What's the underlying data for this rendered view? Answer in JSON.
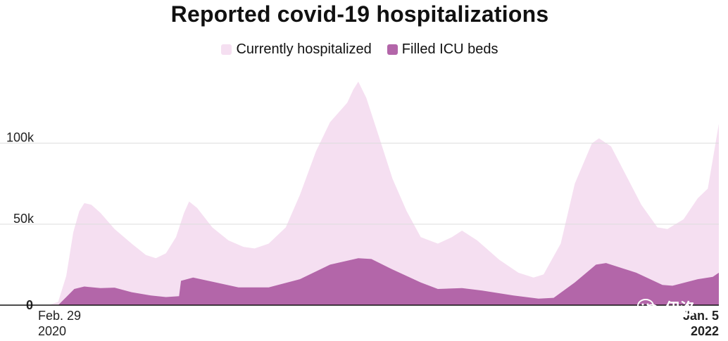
{
  "chart_data": {
    "type": "area",
    "title": "Reported covid-19 hospitalizations",
    "legend_position": "top-center",
    "grid": true,
    "ylim": [
      0,
      145000
    ],
    "y_ticks": [
      {
        "value": 0,
        "label": "0"
      },
      {
        "value": 50000,
        "label": "50k"
      },
      {
        "value": 100000,
        "label": "100k"
      }
    ],
    "x_range": [
      "2020-02-29",
      "2022-01-05"
    ],
    "x_ticks": [
      {
        "date": "2020-02-29",
        "line1": "Feb. 29",
        "line2": "2020",
        "bold": false
      },
      {
        "date": "2022-01-05",
        "line1": "Jan. 5",
        "line2": "2022",
        "bold": true
      }
    ],
    "series": [
      {
        "name": "Currently hospitalized",
        "color": "#f5dff1",
        "points": [
          [
            "2020-02-29",
            0
          ],
          [
            "2020-03-10",
            0
          ],
          [
            "2020-03-20",
            2000
          ],
          [
            "2020-03-28",
            18000
          ],
          [
            "2020-04-04",
            45000
          ],
          [
            "2020-04-10",
            58000
          ],
          [
            "2020-04-15",
            63000
          ],
          [
            "2020-04-22",
            62000
          ],
          [
            "2020-05-01",
            57000
          ],
          [
            "2020-05-15",
            47000
          ],
          [
            "2020-06-01",
            38000
          ],
          [
            "2020-06-15",
            31000
          ],
          [
            "2020-06-25",
            29000
          ],
          [
            "2020-07-05",
            32000
          ],
          [
            "2020-07-15",
            42000
          ],
          [
            "2020-07-23",
            57000
          ],
          [
            "2020-07-28",
            64000
          ],
          [
            "2020-08-05",
            60000
          ],
          [
            "2020-08-20",
            48000
          ],
          [
            "2020-09-05",
            40000
          ],
          [
            "2020-09-20",
            36000
          ],
          [
            "2020-10-01",
            35000
          ],
          [
            "2020-10-15",
            38000
          ],
          [
            "2020-11-01",
            48000
          ],
          [
            "2020-11-15",
            68000
          ],
          [
            "2020-12-01",
            95000
          ],
          [
            "2020-12-15",
            113000
          ],
          [
            "2021-01-01",
            125000
          ],
          [
            "2021-01-07",
            133000
          ],
          [
            "2021-01-12",
            138000
          ],
          [
            "2021-01-20",
            128000
          ],
          [
            "2021-02-01",
            105000
          ],
          [
            "2021-02-15",
            78000
          ],
          [
            "2021-03-01",
            58000
          ],
          [
            "2021-03-15",
            42000
          ],
          [
            "2021-04-01",
            38000
          ],
          [
            "2021-04-15",
            42000
          ],
          [
            "2021-04-25",
            46000
          ],
          [
            "2021-05-10",
            40000
          ],
          [
            "2021-06-01",
            28000
          ],
          [
            "2021-06-20",
            20000
          ],
          [
            "2021-07-05",
            17000
          ],
          [
            "2021-07-15",
            19000
          ],
          [
            "2021-08-01",
            38000
          ],
          [
            "2021-08-15",
            75000
          ],
          [
            "2021-09-01",
            100000
          ],
          [
            "2021-09-08",
            103000
          ],
          [
            "2021-09-20",
            98000
          ],
          [
            "2021-10-05",
            80000
          ],
          [
            "2021-10-20",
            62000
          ],
          [
            "2021-11-05",
            48000
          ],
          [
            "2021-11-15",
            47000
          ],
          [
            "2021-12-01",
            53000
          ],
          [
            "2021-12-15",
            66000
          ],
          [
            "2021-12-25",
            72000
          ],
          [
            "2021-12-30",
            90000
          ],
          [
            "2022-01-05",
            112000
          ]
        ]
      },
      {
        "name": "Filled ICU beds",
        "color": "#b366a9",
        "points": [
          [
            "2020-02-29",
            0
          ],
          [
            "2020-03-20",
            0
          ],
          [
            "2020-03-28",
            5000
          ],
          [
            "2020-04-05",
            10000
          ],
          [
            "2020-04-15",
            11500
          ],
          [
            "2020-05-01",
            10500
          ],
          [
            "2020-05-15",
            10800
          ],
          [
            "2020-06-01",
            8000
          ],
          [
            "2020-06-20",
            6000
          ],
          [
            "2020-07-05",
            5000
          ],
          [
            "2020-07-18",
            5500
          ],
          [
            "2020-07-20",
            15000
          ],
          [
            "2020-08-01",
            17000
          ],
          [
            "2020-08-20",
            14500
          ],
          [
            "2020-09-15",
            11000
          ],
          [
            "2020-10-15",
            11000
          ],
          [
            "2020-11-15",
            16000
          ],
          [
            "2020-12-15",
            25000
          ],
          [
            "2021-01-12",
            29000
          ],
          [
            "2021-01-25",
            28500
          ],
          [
            "2021-02-15",
            22000
          ],
          [
            "2021-03-15",
            14000
          ],
          [
            "2021-04-01",
            10000
          ],
          [
            "2021-04-25",
            10500
          ],
          [
            "2021-05-15",
            9000
          ],
          [
            "2021-06-15",
            6000
          ],
          [
            "2021-07-10",
            4000
          ],
          [
            "2021-07-25",
            4500
          ],
          [
            "2021-08-15",
            14000
          ],
          [
            "2021-09-05",
            25000
          ],
          [
            "2021-09-15",
            26000
          ],
          [
            "2021-10-15",
            20000
          ],
          [
            "2021-11-10",
            12500
          ],
          [
            "2021-11-20",
            12000
          ],
          [
            "2021-12-15",
            16000
          ],
          [
            "2021-12-30",
            17500
          ],
          [
            "2022-01-05",
            20000
          ]
        ]
      }
    ]
  },
  "watermark": "伊洛"
}
